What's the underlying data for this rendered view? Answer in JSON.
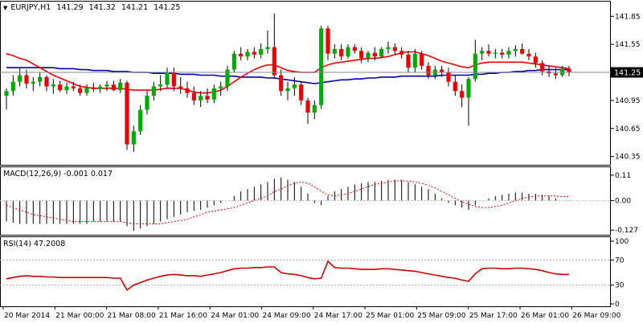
{
  "header": {
    "symbol": "EURJPY,H1",
    "open": "141.29",
    "high": "141.32",
    "low": "141.21",
    "close": "141.25"
  },
  "macd_label": "MACD(12,26,9) -0.001 0.017",
  "rsi_label": "RSI(14) 47.2008",
  "colors": {
    "bull": "#00aa00",
    "bear": "#ee0000",
    "ma_fast": "#ee0000",
    "ma_slow": "#0000aa",
    "macd_hist": "#000000",
    "macd_signal": "#ee0000",
    "rsi": "#cc0000",
    "current_price_tag": "#000000"
  },
  "chart_data": [
    {
      "type": "candlestick",
      "panel": "price",
      "symbol": "EURJPY",
      "timeframe": "H1",
      "current_price": 141.25,
      "current_price_label": "141.25",
      "y_ticks": [
        140.35,
        140.65,
        140.95,
        141.25,
        141.55,
        141.85
      ],
      "y_tick_labels": [
        "140.35",
        "140.65",
        "140.95",
        "141.25",
        "141.55",
        "141.85"
      ],
      "ylim": [
        140.27,
        141.99
      ],
      "x_labels": [
        "20 Mar 2014",
        "21 Mar 00:00",
        "21 Mar 08:00",
        "21 Mar 16:00",
        "24 Mar 01:00",
        "24 Mar 09:00",
        "24 Mar 17:00",
        "25 Mar 01:00",
        "25 Mar 09:00",
        "25 Mar 17:00",
        "26 Mar 01:00",
        "26 Mar 09:00"
      ],
      "candles": [
        {
          "o": 141.0,
          "h": 141.08,
          "l": 140.85,
          "c": 141.05
        },
        {
          "o": 141.05,
          "h": 141.22,
          "l": 141.0,
          "c": 141.15
        },
        {
          "o": 141.15,
          "h": 141.3,
          "l": 141.1,
          "c": 141.22
        },
        {
          "o": 141.22,
          "h": 141.28,
          "l": 141.08,
          "c": 141.13
        },
        {
          "o": 141.13,
          "h": 141.2,
          "l": 141.05,
          "c": 141.15
        },
        {
          "o": 141.15,
          "h": 141.25,
          "l": 141.1,
          "c": 141.2
        },
        {
          "o": 141.2,
          "h": 141.22,
          "l": 141.05,
          "c": 141.1
        },
        {
          "o": 141.1,
          "h": 141.18,
          "l": 141.02,
          "c": 141.12
        },
        {
          "o": 141.12,
          "h": 141.16,
          "l": 141.04,
          "c": 141.06
        },
        {
          "o": 141.06,
          "h": 141.14,
          "l": 141.02,
          "c": 141.1
        },
        {
          "o": 141.1,
          "h": 141.15,
          "l": 141.05,
          "c": 141.08
        },
        {
          "o": 141.08,
          "h": 141.12,
          "l": 141.0,
          "c": 141.03
        },
        {
          "o": 141.03,
          "h": 141.12,
          "l": 141.0,
          "c": 141.09
        },
        {
          "o": 141.09,
          "h": 141.14,
          "l": 141.04,
          "c": 141.07
        },
        {
          "o": 141.07,
          "h": 141.12,
          "l": 141.03,
          "c": 141.1
        },
        {
          "o": 141.1,
          "h": 141.16,
          "l": 141.05,
          "c": 141.12
        },
        {
          "o": 141.12,
          "h": 141.16,
          "l": 141.05,
          "c": 141.06
        },
        {
          "o": 141.06,
          "h": 141.18,
          "l": 141.03,
          "c": 141.14
        },
        {
          "o": 141.14,
          "h": 141.16,
          "l": 140.42,
          "c": 140.48
        },
        {
          "o": 140.48,
          "h": 140.68,
          "l": 140.4,
          "c": 140.62
        },
        {
          "o": 140.62,
          "h": 140.9,
          "l": 140.58,
          "c": 140.85
        },
        {
          "o": 140.85,
          "h": 141.05,
          "l": 140.8,
          "c": 141.0
        },
        {
          "o": 141.0,
          "h": 141.15,
          "l": 140.95,
          "c": 141.1
        },
        {
          "o": 141.1,
          "h": 141.22,
          "l": 141.05,
          "c": 141.12
        },
        {
          "o": 141.12,
          "h": 141.3,
          "l": 141.08,
          "c": 141.25
        },
        {
          "o": 141.25,
          "h": 141.3,
          "l": 141.05,
          "c": 141.1
        },
        {
          "o": 141.1,
          "h": 141.2,
          "l": 141.02,
          "c": 141.08
        },
        {
          "o": 141.08,
          "h": 141.15,
          "l": 140.98,
          "c": 141.03
        },
        {
          "o": 141.03,
          "h": 141.1,
          "l": 140.9,
          "c": 140.95
        },
        {
          "o": 140.95,
          "h": 141.05,
          "l": 140.88,
          "c": 141.0
        },
        {
          "o": 141.0,
          "h": 141.08,
          "l": 140.92,
          "c": 140.96
        },
        {
          "o": 140.96,
          "h": 141.12,
          "l": 140.92,
          "c": 141.08
        },
        {
          "o": 141.08,
          "h": 141.15,
          "l": 141.0,
          "c": 141.1
        },
        {
          "o": 141.1,
          "h": 141.32,
          "l": 141.05,
          "c": 141.28
        },
        {
          "o": 141.28,
          "h": 141.48,
          "l": 141.25,
          "c": 141.45
        },
        {
          "o": 141.45,
          "h": 141.52,
          "l": 141.38,
          "c": 141.42
        },
        {
          "o": 141.42,
          "h": 141.5,
          "l": 141.38,
          "c": 141.47
        },
        {
          "o": 141.47,
          "h": 141.52,
          "l": 141.4,
          "c": 141.44
        },
        {
          "o": 141.44,
          "h": 141.56,
          "l": 141.4,
          "c": 141.5
        },
        {
          "o": 141.5,
          "h": 141.7,
          "l": 141.45,
          "c": 141.52
        },
        {
          "o": 141.52,
          "h": 141.88,
          "l": 141.18,
          "c": 141.22
        },
        {
          "o": 141.22,
          "h": 141.28,
          "l": 141.0,
          "c": 141.05
        },
        {
          "o": 141.05,
          "h": 141.15,
          "l": 140.95,
          "c": 141.08
        },
        {
          "o": 141.08,
          "h": 141.2,
          "l": 141.0,
          "c": 141.12
        },
        {
          "o": 141.12,
          "h": 141.15,
          "l": 140.9,
          "c": 140.95
        },
        {
          "o": 140.95,
          "h": 140.98,
          "l": 140.7,
          "c": 140.82
        },
        {
          "o": 140.82,
          "h": 140.95,
          "l": 140.75,
          "c": 140.9
        },
        {
          "o": 140.9,
          "h": 141.75,
          "l": 140.86,
          "c": 141.72
        },
        {
          "o": 141.72,
          "h": 141.75,
          "l": 141.38,
          "c": 141.45
        },
        {
          "o": 141.45,
          "h": 141.55,
          "l": 141.4,
          "c": 141.5
        },
        {
          "o": 141.5,
          "h": 141.55,
          "l": 141.38,
          "c": 141.42
        },
        {
          "o": 141.42,
          "h": 141.55,
          "l": 141.4,
          "c": 141.52
        },
        {
          "o": 141.52,
          "h": 141.55,
          "l": 141.45,
          "c": 141.48
        },
        {
          "o": 141.48,
          "h": 141.52,
          "l": 141.35,
          "c": 141.4
        },
        {
          "o": 141.4,
          "h": 141.48,
          "l": 141.36,
          "c": 141.46
        },
        {
          "o": 141.46,
          "h": 141.52,
          "l": 141.38,
          "c": 141.42
        },
        {
          "o": 141.42,
          "h": 141.52,
          "l": 141.4,
          "c": 141.5
        },
        {
          "o": 141.5,
          "h": 141.58,
          "l": 141.45,
          "c": 141.52
        },
        {
          "o": 141.52,
          "h": 141.56,
          "l": 141.44,
          "c": 141.48
        },
        {
          "o": 141.48,
          "h": 141.52,
          "l": 141.4,
          "c": 141.44
        },
        {
          "o": 141.44,
          "h": 141.48,
          "l": 141.25,
          "c": 141.3
        },
        {
          "o": 141.3,
          "h": 141.5,
          "l": 141.25,
          "c": 141.45
        },
        {
          "o": 141.45,
          "h": 141.48,
          "l": 141.28,
          "c": 141.32
        },
        {
          "o": 141.32,
          "h": 141.36,
          "l": 141.18,
          "c": 141.22
        },
        {
          "o": 141.22,
          "h": 141.32,
          "l": 141.18,
          "c": 141.28
        },
        {
          "o": 141.28,
          "h": 141.32,
          "l": 141.2,
          "c": 141.25
        },
        {
          "o": 141.25,
          "h": 141.3,
          "l": 141.1,
          "c": 141.15
        },
        {
          "o": 141.15,
          "h": 141.22,
          "l": 141.0,
          "c": 141.05
        },
        {
          "o": 141.05,
          "h": 141.12,
          "l": 140.88,
          "c": 140.98
        },
        {
          "o": 140.98,
          "h": 141.2,
          "l": 140.68,
          "c": 141.18
        },
        {
          "o": 141.18,
          "h": 141.6,
          "l": 141.15,
          "c": 141.45
        },
        {
          "o": 141.45,
          "h": 141.52,
          "l": 141.38,
          "c": 141.48
        },
        {
          "o": 141.48,
          "h": 141.55,
          "l": 141.42,
          "c": 141.45
        },
        {
          "o": 141.45,
          "h": 141.5,
          "l": 141.4,
          "c": 141.46
        },
        {
          "o": 141.46,
          "h": 141.5,
          "l": 141.4,
          "c": 141.44
        },
        {
          "o": 141.44,
          "h": 141.52,
          "l": 141.4,
          "c": 141.48
        },
        {
          "o": 141.48,
          "h": 141.54,
          "l": 141.42,
          "c": 141.5
        },
        {
          "o": 141.5,
          "h": 141.56,
          "l": 141.44,
          "c": 141.45
        },
        {
          "o": 141.45,
          "h": 141.5,
          "l": 141.38,
          "c": 141.42
        },
        {
          "o": 141.42,
          "h": 141.46,
          "l": 141.3,
          "c": 141.35
        },
        {
          "o": 141.35,
          "h": 141.38,
          "l": 141.22,
          "c": 141.26
        },
        {
          "o": 141.26,
          "h": 141.32,
          "l": 141.2,
          "c": 141.24
        },
        {
          "o": 141.24,
          "h": 141.3,
          "l": 141.18,
          "c": 141.22
        },
        {
          "o": 141.22,
          "h": 141.32,
          "l": 141.2,
          "c": 141.29
        },
        {
          "o": 141.29,
          "h": 141.32,
          "l": 141.21,
          "c": 141.25
        }
      ],
      "ma_fast": [
        141.45,
        141.43,
        141.4,
        141.38,
        141.34,
        141.3,
        141.26,
        141.22,
        141.19,
        141.16,
        141.13,
        141.1,
        141.09,
        141.08,
        141.08,
        141.08,
        141.08,
        141.08,
        141.07,
        141.06,
        141.06,
        141.06,
        141.06,
        141.07,
        141.08,
        141.08,
        141.08,
        141.06,
        141.04,
        141.03,
        141.03,
        141.04,
        141.06,
        141.1,
        141.15,
        141.2,
        141.24,
        141.28,
        141.31,
        141.33,
        141.33,
        141.3,
        141.27,
        141.26,
        141.25,
        141.25,
        141.25,
        141.3,
        141.33,
        141.35,
        141.36,
        141.37,
        141.38,
        141.39,
        141.4,
        141.4,
        141.41,
        141.42,
        141.44,
        141.46,
        141.47,
        141.47,
        141.45,
        141.43,
        141.4,
        141.37,
        141.35,
        141.33,
        141.31,
        141.3,
        141.33,
        141.35,
        141.36,
        141.36,
        141.36,
        141.36,
        141.36,
        141.36,
        141.35,
        141.34,
        141.33,
        141.32,
        141.31,
        141.3,
        141.29
      ],
      "ma_slow": [
        141.3,
        141.3,
        141.3,
        141.3,
        141.3,
        141.3,
        141.3,
        141.3,
        141.29,
        141.29,
        141.29,
        141.28,
        141.28,
        141.27,
        141.27,
        141.27,
        141.26,
        141.26,
        141.26,
        141.25,
        141.25,
        141.25,
        141.24,
        141.24,
        141.24,
        141.24,
        141.23,
        141.23,
        141.23,
        141.22,
        141.22,
        141.22,
        141.21,
        141.21,
        141.21,
        141.2,
        141.2,
        141.2,
        141.2,
        141.19,
        141.19,
        141.18,
        141.17,
        141.16,
        141.15,
        141.14,
        141.13,
        141.14,
        141.15,
        141.16,
        141.17,
        141.17,
        141.18,
        141.18,
        141.19,
        141.19,
        141.2,
        141.2,
        141.2,
        141.21,
        141.21,
        141.21,
        141.21,
        141.21,
        141.21,
        141.22,
        141.22,
        141.22,
        141.22,
        141.22,
        141.23,
        141.23,
        141.24,
        141.24,
        141.25,
        141.25,
        141.26,
        141.26,
        141.27,
        141.27,
        141.28,
        141.28,
        141.28,
        141.28,
        141.28
      ]
    },
    {
      "type": "bar",
      "panel": "macd",
      "title": "MACD(12,26,9) -0.001 0.017",
      "y_ticks": [
        0.11,
        0.0,
        -0.127
      ],
      "y_tick_labels": [
        "0.11",
        "0.00",
        "-0.127"
      ],
      "ylim": [
        -0.14,
        0.13
      ],
      "histogram": [
        -0.09,
        -0.095,
        -0.1,
        -0.1,
        -0.1,
        -0.1,
        -0.1,
        -0.1,
        -0.1,
        -0.1,
        -0.1,
        -0.1,
        -0.1,
        -0.09,
        -0.09,
        -0.09,
        -0.09,
        -0.09,
        -0.11,
        -0.13,
        -0.12,
        -0.11,
        -0.1,
        -0.09,
        -0.08,
        -0.07,
        -0.06,
        -0.05,
        -0.045,
        -0.04,
        -0.03,
        -0.02,
        -0.01,
        0.0,
        0.02,
        0.04,
        0.05,
        0.06,
        0.07,
        0.08,
        0.095,
        0.1,
        0.09,
        0.08,
        0.06,
        0.03,
        -0.01,
        -0.02,
        0.02,
        0.04,
        0.05,
        0.06,
        0.07,
        0.075,
        0.08,
        0.08,
        0.085,
        0.09,
        0.09,
        0.09,
        0.08,
        0.07,
        0.06,
        0.05,
        0.03,
        0.01,
        -0.01,
        -0.02,
        -0.03,
        -0.04,
        -0.02,
        0.0,
        0.01,
        0.02,
        0.025,
        0.03,
        0.035,
        0.035,
        0.03,
        0.03,
        0.025,
        0.02,
        0.01,
        0.0,
        -0.001
      ],
      "signal": [
        -0.02,
        -0.03,
        -0.04,
        -0.05,
        -0.06,
        -0.065,
        -0.07,
        -0.075,
        -0.08,
        -0.085,
        -0.09,
        -0.09,
        -0.09,
        -0.09,
        -0.09,
        -0.09,
        -0.09,
        -0.09,
        -0.095,
        -0.1,
        -0.1,
        -0.1,
        -0.1,
        -0.1,
        -0.095,
        -0.09,
        -0.085,
        -0.08,
        -0.07,
        -0.06,
        -0.05,
        -0.045,
        -0.04,
        -0.035,
        -0.03,
        -0.02,
        -0.01,
        0.0,
        0.01,
        0.02,
        0.04,
        0.05,
        0.065,
        0.075,
        0.08,
        0.075,
        0.06,
        0.04,
        0.025,
        0.02,
        0.025,
        0.03,
        0.04,
        0.05,
        0.06,
        0.07,
        0.075,
        0.08,
        0.085,
        0.085,
        0.085,
        0.08,
        0.075,
        0.065,
        0.055,
        0.04,
        0.025,
        0.01,
        -0.005,
        -0.015,
        -0.025,
        -0.03,
        -0.03,
        -0.025,
        -0.02,
        -0.01,
        0.0,
        0.01,
        0.015,
        0.02,
        0.02,
        0.02,
        0.02,
        0.017,
        0.017
      ]
    },
    {
      "type": "line",
      "panel": "rsi",
      "title": "RSI(14) 47.2008",
      "y_ticks": [
        100,
        70,
        30,
        0
      ],
      "y_tick_labels": [
        "100",
        "70",
        "30",
        "0"
      ],
      "levels": [
        70,
        30
      ],
      "ylim": [
        0,
        100
      ],
      "values": [
        40,
        42,
        44,
        45,
        44,
        44,
        43,
        43,
        42,
        42,
        42,
        42,
        42,
        42,
        42,
        42,
        41,
        41,
        22,
        30,
        34,
        38,
        41,
        44,
        46,
        47,
        46,
        45,
        45,
        44,
        46,
        48,
        50,
        53,
        56,
        57,
        57,
        58,
        58,
        59,
        59,
        50,
        48,
        47,
        45,
        42,
        40,
        41,
        68,
        58,
        57,
        57,
        56,
        55,
        55,
        55,
        56,
        56,
        55,
        54,
        53,
        52,
        50,
        48,
        46,
        44,
        42,
        41,
        38,
        36,
        48,
        56,
        57,
        57,
        56,
        56,
        57,
        57,
        56,
        55,
        53,
        50,
        48,
        47,
        47
      ]
    }
  ]
}
